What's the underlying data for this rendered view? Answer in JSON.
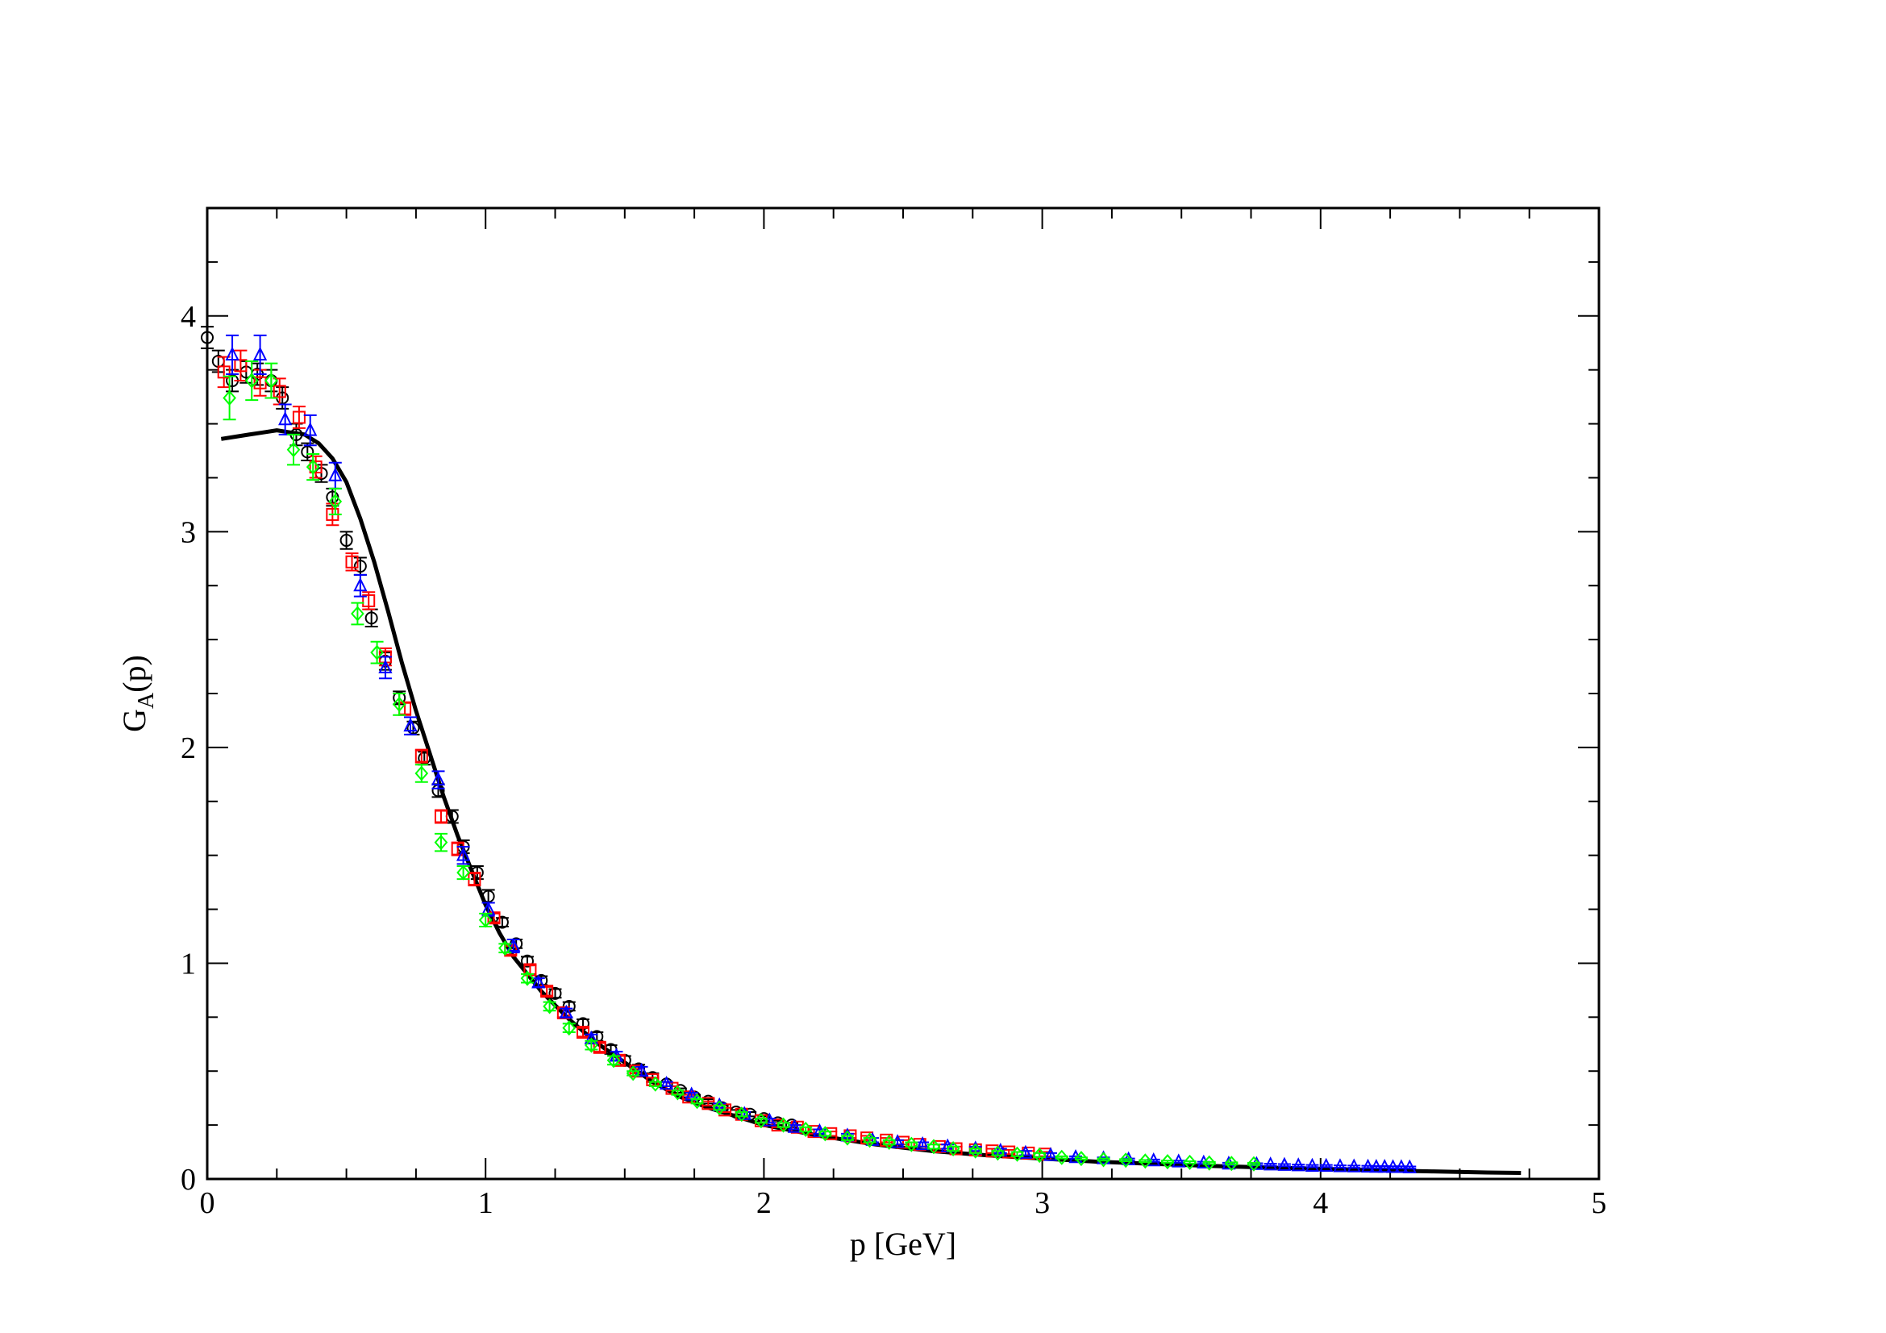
{
  "chart_data": {
    "type": "scatter",
    "title": "",
    "xlabel": "p [GeV]",
    "ylabel_main": "G",
    "ylabel_sub": "A",
    "ylabel_tail": "(p)",
    "xlim": [
      0,
      5
    ],
    "ylim": [
      0,
      4.5
    ],
    "xticks": [
      0,
      1,
      2,
      3,
      4,
      5
    ],
    "yticks": [
      0,
      1,
      2,
      3,
      4
    ],
    "grid": false,
    "series": [
      {
        "marker": "circle",
        "color": "#000000",
        "points": [
          [
            0.0,
            3.9,
            0.05
          ],
          [
            0.04,
            3.79,
            0.05
          ],
          [
            0.09,
            3.7,
            0.05
          ],
          [
            0.14,
            3.74,
            0.05
          ],
          [
            0.18,
            3.73,
            0.05
          ],
          [
            0.23,
            3.7,
            0.05
          ],
          [
            0.27,
            3.62,
            0.05
          ],
          [
            0.32,
            3.45,
            0.05
          ],
          [
            0.36,
            3.37,
            0.04
          ],
          [
            0.41,
            3.27,
            0.04
          ],
          [
            0.45,
            3.16,
            0.04
          ],
          [
            0.5,
            2.96,
            0.04
          ],
          [
            0.55,
            2.84,
            0.04
          ],
          [
            0.59,
            2.6,
            0.04
          ],
          [
            0.64,
            2.4,
            0.04
          ],
          [
            0.69,
            2.23,
            0.03
          ],
          [
            0.74,
            2.09,
            0.03
          ],
          [
            0.78,
            1.95,
            0.03
          ],
          [
            0.83,
            1.8,
            0.03
          ],
          [
            0.88,
            1.68,
            0.03
          ],
          [
            0.92,
            1.54,
            0.03
          ],
          [
            0.97,
            1.42,
            0.03
          ],
          [
            1.01,
            1.31,
            0.03
          ],
          [
            1.06,
            1.19,
            0.02
          ],
          [
            1.11,
            1.09,
            0.02
          ],
          [
            1.15,
            1.01,
            0.02
          ],
          [
            1.2,
            0.92,
            0.02
          ],
          [
            1.25,
            0.86,
            0.02
          ],
          [
            1.3,
            0.8,
            0.02
          ],
          [
            1.35,
            0.72,
            0.02
          ],
          [
            1.4,
            0.66,
            0.02
          ],
          [
            1.45,
            0.6,
            0.02
          ],
          [
            1.5,
            0.55,
            0.02
          ],
          [
            1.55,
            0.51,
            0.02
          ],
          [
            1.6,
            0.47,
            0.02
          ],
          [
            1.65,
            0.44,
            0.01
          ],
          [
            1.7,
            0.41,
            0.01
          ],
          [
            1.75,
            0.38,
            0.01
          ],
          [
            1.8,
            0.36,
            0.01
          ],
          [
            1.85,
            0.33,
            0.01
          ],
          [
            1.9,
            0.31,
            0.01
          ],
          [
            1.95,
            0.3,
            0.01
          ],
          [
            2.0,
            0.28,
            0.01
          ],
          [
            2.05,
            0.26,
            0.01
          ],
          [
            2.1,
            0.25,
            0.01
          ]
        ]
      },
      {
        "marker": "square",
        "color": "#ff0000",
        "points": [
          [
            0.06,
            3.74,
            0.07
          ],
          [
            0.12,
            3.77,
            0.07
          ],
          [
            0.19,
            3.69,
            0.06
          ],
          [
            0.26,
            3.65,
            0.06
          ],
          [
            0.33,
            3.53,
            0.05
          ],
          [
            0.39,
            3.3,
            0.05
          ],
          [
            0.45,
            3.08,
            0.05
          ],
          [
            0.52,
            2.86,
            0.04
          ],
          [
            0.58,
            2.68,
            0.04
          ],
          [
            0.64,
            2.42,
            0.04
          ],
          [
            0.71,
            2.18,
            0.03
          ],
          [
            0.77,
            1.96,
            0.03
          ],
          [
            0.84,
            1.68,
            0.03
          ],
          [
            0.9,
            1.53,
            0.03
          ],
          [
            0.96,
            1.39,
            0.03
          ],
          [
            1.03,
            1.21,
            0.02
          ],
          [
            1.09,
            1.06,
            0.02
          ],
          [
            1.16,
            0.97,
            0.02
          ],
          [
            1.22,
            0.87,
            0.02
          ],
          [
            1.28,
            0.77,
            0.02
          ],
          [
            1.35,
            0.68,
            0.02
          ],
          [
            1.41,
            0.61,
            0.02
          ],
          [
            1.48,
            0.55,
            0.02
          ],
          [
            1.54,
            0.5,
            0.01
          ],
          [
            1.6,
            0.46,
            0.01
          ],
          [
            1.67,
            0.42,
            0.01
          ],
          [
            1.73,
            0.38,
            0.01
          ],
          [
            1.8,
            0.35,
            0.01
          ],
          [
            1.86,
            0.32,
            0.01
          ],
          [
            1.92,
            0.3,
            0.01
          ],
          [
            1.99,
            0.27,
            0.01
          ],
          [
            2.05,
            0.25,
            0.01
          ],
          [
            2.12,
            0.24,
            0.01
          ],
          [
            2.18,
            0.22,
            0.01
          ],
          [
            2.24,
            0.21,
            0.01
          ],
          [
            2.31,
            0.2,
            0.01
          ],
          [
            2.37,
            0.19,
            0.01
          ],
          [
            2.44,
            0.18,
            0.01
          ],
          [
            2.5,
            0.17,
            0.01
          ],
          [
            2.56,
            0.16,
            0.01
          ],
          [
            2.63,
            0.15,
            0.01
          ],
          [
            2.69,
            0.14,
            0.01
          ],
          [
            2.76,
            0.135,
            0.01
          ],
          [
            2.82,
            0.13,
            0.01
          ],
          [
            2.88,
            0.125,
            0.01
          ],
          [
            2.95,
            0.12,
            0.01
          ],
          [
            3.01,
            0.115,
            0.01
          ]
        ]
      },
      {
        "marker": "triangle",
        "color": "#0000ff",
        "points": [
          [
            0.09,
            3.82,
            0.09
          ],
          [
            0.19,
            3.82,
            0.09
          ],
          [
            0.28,
            3.52,
            0.07
          ],
          [
            0.37,
            3.47,
            0.07
          ],
          [
            0.46,
            3.26,
            0.06
          ],
          [
            0.55,
            2.75,
            0.05
          ],
          [
            0.64,
            2.37,
            0.05
          ],
          [
            0.73,
            2.1,
            0.04
          ],
          [
            0.83,
            1.85,
            0.04
          ],
          [
            0.92,
            1.5,
            0.04
          ],
          [
            1.01,
            1.25,
            0.03
          ],
          [
            1.1,
            1.08,
            0.03
          ],
          [
            1.19,
            0.91,
            0.02
          ],
          [
            1.29,
            0.77,
            0.02
          ],
          [
            1.38,
            0.65,
            0.02
          ],
          [
            1.47,
            0.57,
            0.02
          ],
          [
            1.56,
            0.5,
            0.02
          ],
          [
            1.65,
            0.44,
            0.01
          ],
          [
            1.74,
            0.39,
            0.01
          ],
          [
            1.84,
            0.34,
            0.01
          ],
          [
            1.93,
            0.3,
            0.01
          ],
          [
            2.02,
            0.27,
            0.01
          ],
          [
            2.11,
            0.24,
            0.01
          ],
          [
            2.2,
            0.22,
            0.01
          ],
          [
            2.3,
            0.2,
            0.01
          ],
          [
            2.39,
            0.18,
            0.01
          ],
          [
            2.48,
            0.17,
            0.01
          ],
          [
            2.57,
            0.16,
            0.01
          ],
          [
            2.66,
            0.15,
            0.01
          ],
          [
            2.76,
            0.14,
            0.01
          ],
          [
            2.85,
            0.13,
            0.01
          ],
          [
            2.94,
            0.12,
            0.01
          ],
          [
            3.03,
            0.11,
            0.01
          ],
          [
            3.12,
            0.1,
            0.005
          ],
          [
            3.22,
            0.095,
            0.005
          ],
          [
            3.31,
            0.09,
            0.005
          ],
          [
            3.4,
            0.085,
            0.005
          ],
          [
            3.49,
            0.08,
            0.005
          ],
          [
            3.58,
            0.075,
            0.005
          ],
          [
            3.67,
            0.07,
            0.005
          ],
          [
            3.77,
            0.068,
            0.005
          ],
          [
            3.82,
            0.066,
            0.005
          ],
          [
            3.87,
            0.064,
            0.005
          ],
          [
            3.92,
            0.062,
            0.005
          ],
          [
            3.97,
            0.06,
            0.005
          ],
          [
            4.02,
            0.06,
            0.005
          ],
          [
            4.07,
            0.058,
            0.005
          ],
          [
            4.12,
            0.057,
            0.005
          ],
          [
            4.17,
            0.056,
            0.005
          ],
          [
            4.2,
            0.055,
            0.005
          ],
          [
            4.23,
            0.055,
            0.005
          ],
          [
            4.26,
            0.054,
            0.005
          ],
          [
            4.29,
            0.054,
            0.005
          ],
          [
            4.32,
            0.053,
            0.005
          ]
        ]
      },
      {
        "marker": "diamond",
        "color": "#00ff00",
        "points": [
          [
            0.08,
            3.62,
            0.1
          ],
          [
            0.16,
            3.7,
            0.09
          ],
          [
            0.23,
            3.7,
            0.08
          ],
          [
            0.31,
            3.38,
            0.07
          ],
          [
            0.38,
            3.3,
            0.06
          ],
          [
            0.46,
            3.14,
            0.06
          ],
          [
            0.54,
            2.62,
            0.05
          ],
          [
            0.61,
            2.44,
            0.05
          ],
          [
            0.69,
            2.2,
            0.05
          ],
          [
            0.77,
            1.88,
            0.04
          ],
          [
            0.84,
            1.56,
            0.04
          ],
          [
            0.92,
            1.42,
            0.03
          ],
          [
            1.0,
            1.2,
            0.03
          ],
          [
            1.07,
            1.07,
            0.02
          ],
          [
            1.15,
            0.93,
            0.02
          ],
          [
            1.23,
            0.8,
            0.02
          ],
          [
            1.3,
            0.7,
            0.02
          ],
          [
            1.38,
            0.62,
            0.02
          ],
          [
            1.46,
            0.55,
            0.02
          ],
          [
            1.53,
            0.49,
            0.01
          ],
          [
            1.61,
            0.44,
            0.01
          ],
          [
            1.69,
            0.4,
            0.01
          ],
          [
            1.76,
            0.36,
            0.01
          ],
          [
            1.84,
            0.33,
            0.01
          ],
          [
            1.92,
            0.3,
            0.01
          ],
          [
            1.99,
            0.27,
            0.01
          ],
          [
            2.07,
            0.25,
            0.01
          ],
          [
            2.15,
            0.23,
            0.01
          ],
          [
            2.22,
            0.21,
            0.01
          ],
          [
            2.3,
            0.19,
            0.01
          ],
          [
            2.38,
            0.18,
            0.01
          ],
          [
            2.45,
            0.17,
            0.01
          ],
          [
            2.53,
            0.16,
            0.01
          ],
          [
            2.61,
            0.15,
            0.01
          ],
          [
            2.68,
            0.14,
            0.01
          ],
          [
            2.76,
            0.13,
            0.01
          ],
          [
            2.84,
            0.12,
            0.01
          ],
          [
            2.91,
            0.115,
            0.01
          ],
          [
            2.99,
            0.11,
            0.01
          ],
          [
            3.07,
            0.1,
            0.005
          ],
          [
            3.14,
            0.095,
            0.005
          ],
          [
            3.22,
            0.09,
            0.005
          ],
          [
            3.3,
            0.087,
            0.005
          ],
          [
            3.37,
            0.083,
            0.005
          ],
          [
            3.45,
            0.08,
            0.005
          ],
          [
            3.53,
            0.077,
            0.005
          ],
          [
            3.6,
            0.074,
            0.005
          ],
          [
            3.68,
            0.072,
            0.005
          ],
          [
            3.76,
            0.07,
            0.005
          ]
        ]
      }
    ],
    "curve": {
      "color": "#000000",
      "points": [
        [
          0.05,
          3.43
        ],
        [
          0.1,
          3.44
        ],
        [
          0.15,
          3.45
        ],
        [
          0.2,
          3.46
        ],
        [
          0.25,
          3.47
        ],
        [
          0.3,
          3.46
        ],
        [
          0.35,
          3.45
        ],
        [
          0.4,
          3.41
        ],
        [
          0.45,
          3.34
        ],
        [
          0.5,
          3.23
        ],
        [
          0.55,
          3.06
        ],
        [
          0.6,
          2.86
        ],
        [
          0.65,
          2.63
        ],
        [
          0.7,
          2.39
        ],
        [
          0.75,
          2.17
        ],
        [
          0.8,
          1.97
        ],
        [
          0.85,
          1.77
        ],
        [
          0.9,
          1.59
        ],
        [
          0.95,
          1.43
        ],
        [
          1.0,
          1.27
        ],
        [
          1.05,
          1.14
        ],
        [
          1.1,
          1.03
        ],
        [
          1.2,
          0.87
        ],
        [
          1.3,
          0.74
        ],
        [
          1.4,
          0.63
        ],
        [
          1.5,
          0.54
        ],
        [
          1.6,
          0.45
        ],
        [
          1.7,
          0.38
        ],
        [
          1.8,
          0.33
        ],
        [
          1.9,
          0.29
        ],
        [
          2.0,
          0.25
        ],
        [
          2.2,
          0.2
        ],
        [
          2.4,
          0.16
        ],
        [
          2.6,
          0.13
        ],
        [
          2.8,
          0.11
        ],
        [
          3.0,
          0.094
        ],
        [
          3.2,
          0.08
        ],
        [
          3.4,
          0.07
        ],
        [
          3.6,
          0.061
        ],
        [
          3.8,
          0.053
        ],
        [
          4.0,
          0.047
        ],
        [
          4.2,
          0.04
        ],
        [
          4.4,
          0.035
        ],
        [
          4.6,
          0.03
        ],
        [
          4.72,
          0.028
        ]
      ]
    }
  }
}
